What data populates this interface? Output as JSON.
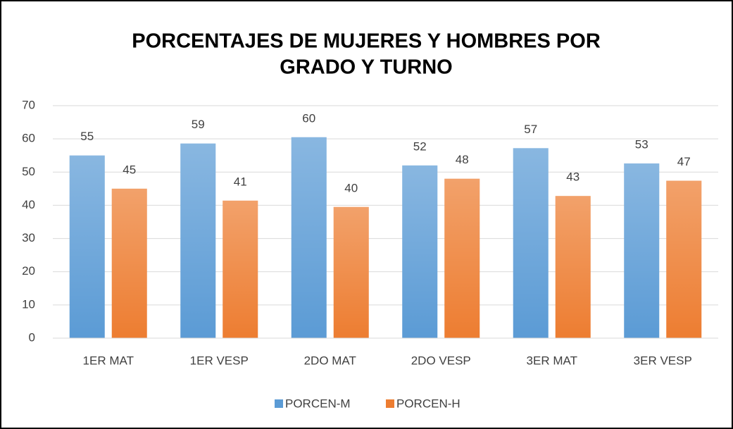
{
  "chart_data": {
    "type": "bar",
    "title": [
      "PORCENTAJES DE MUJERES Y HOMBRES POR",
      "GRADO Y TURNO"
    ],
    "categories": [
      "1ER MAT",
      "1ER VESP",
      "2DO MAT",
      "2DO VESP",
      "3ER MAT",
      "3ER VESP"
    ],
    "series": [
      {
        "name": "PORCEN-M",
        "color": "#5b9bd5",
        "values": [
          55.0,
          58.6,
          60.5,
          52.0,
          57.2,
          52.6
        ],
        "value_labels": [
          "55",
          "59",
          "60",
          "52",
          "57",
          "53"
        ]
      },
      {
        "name": "PORCEN-H",
        "color": "#ed7d31",
        "values": [
          45.0,
          41.4,
          39.5,
          48.0,
          42.8,
          47.4
        ],
        "value_labels": [
          "45",
          "41",
          "40",
          "48",
          "43",
          "47"
        ]
      }
    ],
    "ylim": [
      0,
      70
    ],
    "yticks": [
      0,
      10,
      20,
      30,
      40,
      50,
      60,
      70
    ],
    "grid": true,
    "legend": "bottom"
  }
}
